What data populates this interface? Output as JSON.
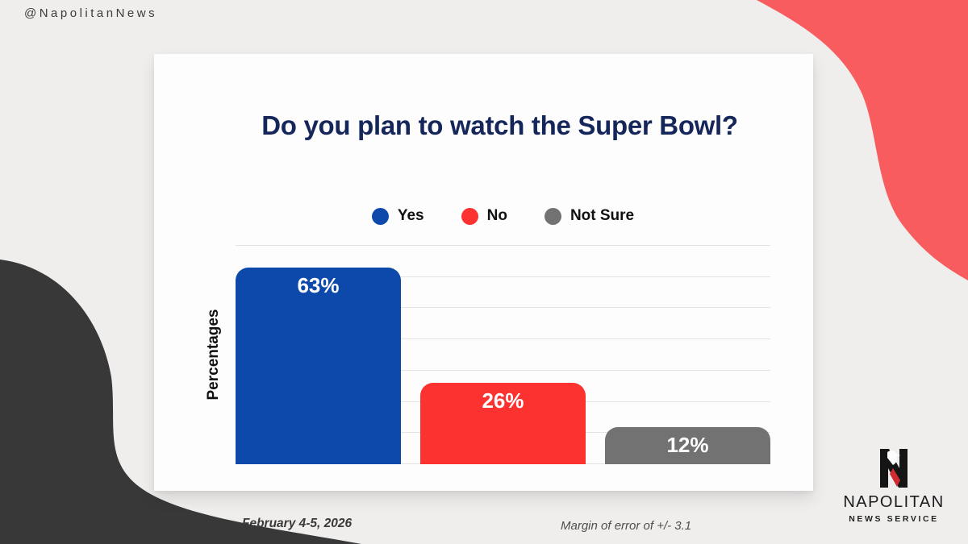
{
  "page": {
    "handle": "@NapolitanNews"
  },
  "chart_data": {
    "type": "bar",
    "title": "Do you plan to watch the Super Bowl?",
    "categories": [
      "Yes",
      "No",
      "Not Sure"
    ],
    "values": [
      63,
      26,
      12
    ],
    "labels": [
      "63%",
      "26%",
      "12%"
    ],
    "bar_colors": [
      "#0d49ab",
      "#fc3230",
      "#727272"
    ],
    "xlabel": "",
    "ylabel": "Percentages",
    "ylim": [
      0,
      70
    ],
    "gridline_step": 10,
    "grid": true,
    "legend_position": "top"
  },
  "footer": {
    "date_label": "February 4-5, 2026",
    "margin_label": "Margin of error of +/- 3.1"
  },
  "logo": {
    "wordmark": "NAPOLITAN",
    "tagline": "NEWS SERVICE"
  },
  "theme": {
    "coral": "#f95c5e",
    "charcoal": "#383838",
    "navy": "#15265a",
    "page_bg": "#efeeed",
    "card_bg": "#fdfdfd",
    "grid_color": "#e4e4e4",
    "logo_red": "#cf2b31",
    "logo_black": "#151515"
  }
}
